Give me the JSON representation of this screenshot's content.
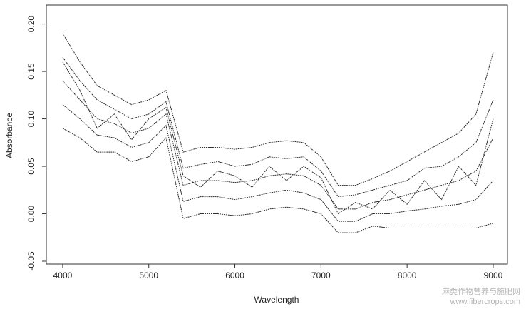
{
  "chart_data": {
    "type": "line",
    "x_label": "Wavelength",
    "y_label": "Absorbance",
    "x": [
      4000,
      4200,
      4400,
      4600,
      4800,
      5000,
      5200,
      5400,
      5600,
      5800,
      6000,
      6200,
      6400,
      6600,
      6800,
      7000,
      7200,
      7400,
      7600,
      7800,
      8000,
      8200,
      8400,
      8600,
      8800,
      9000
    ],
    "series": [
      {
        "color": "#2a2a2a",
        "values": [
          0.19,
          0.16,
          0.135,
          0.125,
          0.115,
          0.12,
          0.13,
          0.065,
          0.07,
          0.07,
          0.068,
          0.07,
          0.075,
          0.077,
          0.075,
          0.06,
          0.03,
          0.03,
          0.037,
          0.045,
          0.055,
          0.065,
          0.075,
          0.085,
          0.105,
          0.17
        ]
      },
      {
        "color": "#2a2a2a",
        "values": [
          0.165,
          0.14,
          0.12,
          0.11,
          0.1,
          0.105,
          0.118,
          0.048,
          0.052,
          0.055,
          0.05,
          0.052,
          0.06,
          0.058,
          0.06,
          0.045,
          0.018,
          0.02,
          0.025,
          0.03,
          0.035,
          0.048,
          0.05,
          0.06,
          0.075,
          0.12
        ]
      },
      {
        "color": "#2a2a2a",
        "values": [
          0.14,
          0.12,
          0.1,
          0.095,
          0.085,
          0.09,
          0.105,
          0.03,
          0.035,
          0.035,
          0.033,
          0.035,
          0.04,
          0.042,
          0.04,
          0.03,
          0.005,
          0.005,
          0.012,
          0.015,
          0.02,
          0.025,
          0.03,
          0.035,
          0.045,
          0.08
        ]
      },
      {
        "color": "#2a2a2a",
        "values": [
          0.115,
          0.1,
          0.083,
          0.08,
          0.07,
          0.075,
          0.093,
          0.013,
          0.018,
          0.018,
          0.015,
          0.018,
          0.022,
          0.025,
          0.022,
          0.015,
          -0.008,
          -0.008,
          0,
          0,
          0.003,
          0.005,
          0.008,
          0.01,
          0.015,
          0.035
        ]
      },
      {
        "color": "#2a2a2a",
        "values": [
          0.09,
          0.08,
          0.065,
          0.065,
          0.055,
          0.06,
          0.08,
          -0.005,
          0,
          0,
          -0.002,
          0,
          0.005,
          0.007,
          0.005,
          0,
          -0.02,
          -0.02,
          -0.013,
          -0.015,
          -0.015,
          -0.015,
          -0.015,
          -0.015,
          -0.015,
          -0.01
        ]
      },
      {
        "color": "#2a2a2a",
        "values": [
          0.16,
          0.13,
          0.09,
          0.105,
          0.078,
          0.1,
          0.112,
          0.04,
          0.028,
          0.045,
          0.04,
          0.028,
          0.05,
          0.035,
          0.05,
          0.038,
          0,
          0.012,
          0.005,
          0.025,
          0.01,
          0.035,
          0.015,
          0.05,
          0.03,
          0.1
        ]
      }
    ],
    "xlim": [
      3810,
      9166
    ],
    "ylim": [
      -0.053,
      0.22
    ],
    "xticks": [
      4000,
      5000,
      6000,
      7000,
      8000,
      9000
    ],
    "yticks": [
      -0.05,
      {
        "value": 0,
        "label": "0.00"
      },
      0.05,
      {
        "value": 0.1,
        "label": "0.10"
      },
      0.15,
      {
        "value": 0.2,
        "label": "0.20"
      }
    ],
    "grid": false,
    "watermark": [
      "麻类作物营养与施肥网",
      "www.fibercrops.com"
    ]
  }
}
